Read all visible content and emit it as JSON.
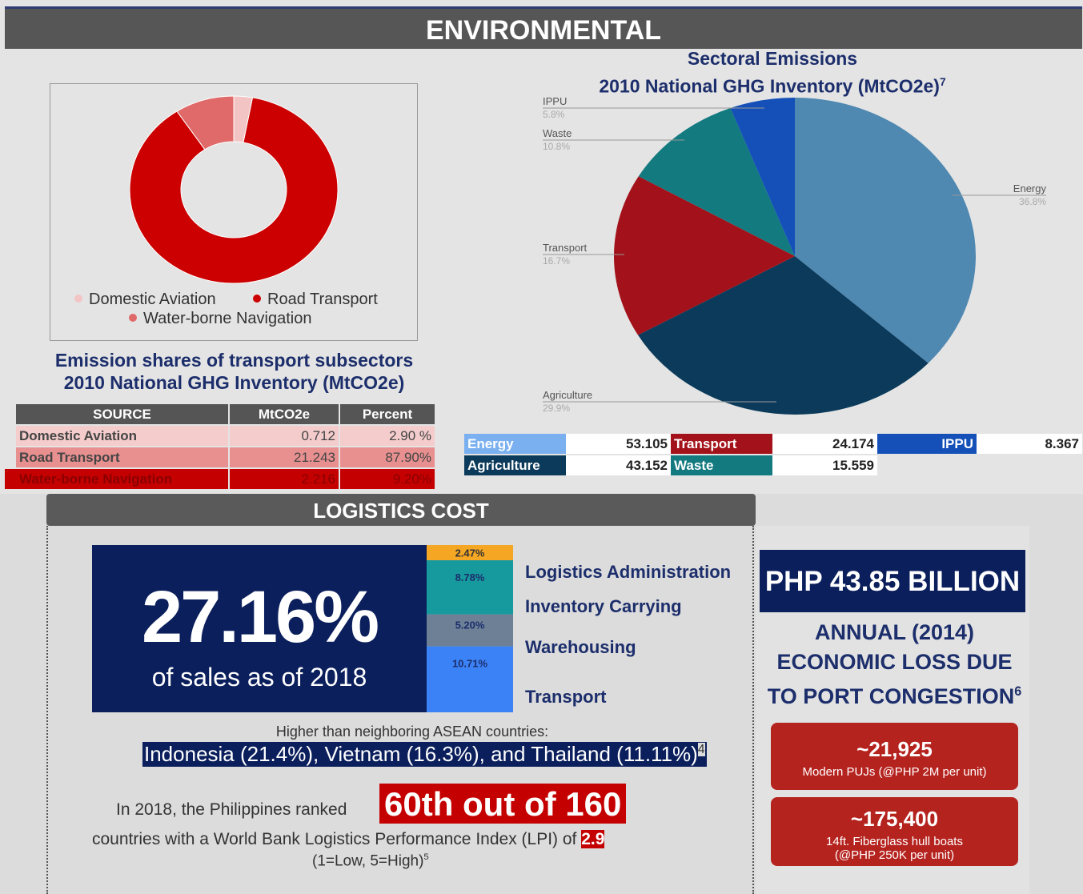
{
  "header": {
    "title": "ENVIRONMENTAL"
  },
  "chart_data": [
    {
      "type": "donut",
      "title": [
        "Emission shares of transport subsectors",
        "2010 National GHG Inventory (MtCO2e)"
      ],
      "categories": [
        "Domestic Aviation",
        "Road Transport",
        "Water-borne Navigation"
      ],
      "values": [
        2.9,
        87.9,
        9.2
      ],
      "colors": [
        "#f2c4c4",
        "#cc0000",
        "#e06a6a"
      ]
    },
    {
      "type": "pie",
      "title": "Sectoral Emissions",
      "subtitle": "2010 National GHG Inventory (MtCO2e)",
      "subtitle_note": "7",
      "categories": [
        "Energy",
        "Agriculture",
        "Transport",
        "Waste",
        "IPPU"
      ],
      "values": [
        36.8,
        29.9,
        16.7,
        10.8,
        5.8
      ],
      "value_labels": [
        "36.8%",
        "29.9%",
        "16.7%",
        "10.8%",
        "5.8%"
      ],
      "colors": [
        "#4f88b0",
        "#0b3a5a",
        "#a3121b",
        "#137a80",
        "#1450b8"
      ]
    },
    {
      "type": "stacked_bar",
      "categories": [
        "Logistics Administration",
        "Inventory Carrying",
        "Warehousing",
        "Transport"
      ],
      "values": [
        2.47,
        8.78,
        5.2,
        10.71
      ],
      "value_labels": [
        "2.47%",
        "8.78%",
        "5.20%",
        "10.71%"
      ],
      "colors": [
        "#f5a623",
        "#169a9e",
        "#6d8096",
        "#3b82f6"
      ]
    }
  ],
  "emission_table": {
    "columns": [
      "SOURCE",
      "MtCO2e",
      "Percent"
    ],
    "rows": [
      [
        "Domestic Aviation",
        0.712,
        "2.90 %"
      ],
      [
        "Road Transport",
        21.243,
        "87.90%"
      ],
      [
        "Water-borne Navigation",
        2.216,
        "9.20%"
      ]
    ]
  },
  "sector_table": [
    {
      "label": "Energy",
      "value": 53.105
    },
    {
      "label": "Transport",
      "value": 24.174
    },
    {
      "label": "IPPU",
      "value": 8.367
    },
    {
      "label": "Agriculture",
      "value": 43.152
    },
    {
      "label": "Waste",
      "value": 15.559
    }
  ],
  "logistics": {
    "title": "LOGISTICS COST",
    "headline": "27.16%",
    "headline_caption": "of sales as of 2018",
    "asean_intro": "Higher than neighboring ASEAN countries:",
    "asean": "Indonesia (21.4%), Vietnam (16.3%), and Thailand (11.11%)",
    "asean_note": "4",
    "rank_intro": "In 2018, the Philippines ranked",
    "rank": "60th out of 160",
    "lpi_text": "countries with a World Bank Logistics Performance Index (LPI) of",
    "lpi": "2.9",
    "lpi_scale": "(1=Low, 5=High)",
    "lpi_note": "5"
  },
  "loss": {
    "amount": "PHP 43.85 BILLION",
    "caption": "ANNUAL (2014) ECONOMIC LOSS DUE TO PORT CONGESTION",
    "note": "6",
    "items": [
      {
        "count": "~21,925",
        "label": "Modern PUJs (@PHP 2M per unit)"
      },
      {
        "count": "~175,400",
        "label": "14ft. Fiberglass hull boats (@PHP 250K per unit)"
      }
    ]
  }
}
